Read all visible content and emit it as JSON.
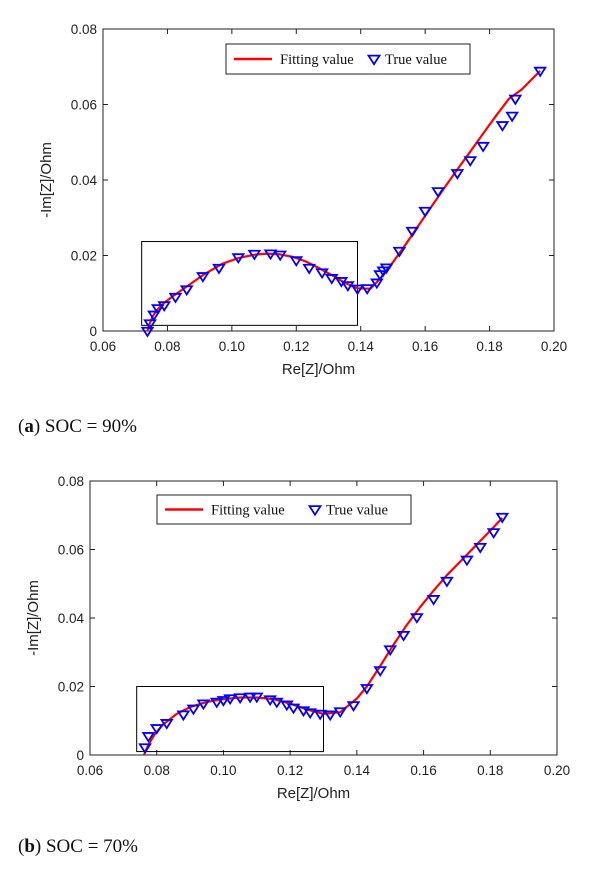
{
  "chart_data": [
    {
      "type": "scatter",
      "panel": "a",
      "caption_letter": "a",
      "caption_text": "SOC = 90%",
      "xlabel": "Re[Z]/Ohm",
      "ylabel": "-Im[Z]/Ohm",
      "xlim": [
        0.06,
        0.2
      ],
      "ylim": [
        0,
        0.08
      ],
      "x_ticks": [
        "0.06",
        "0.08",
        "0.10",
        "0.12",
        "0.14",
        "0.16",
        "0.18",
        "0.20"
      ],
      "y_ticks": [
        "0",
        "0.02",
        "0.04",
        "0.06",
        "0.08"
      ],
      "legend": {
        "position": "top",
        "fit_label": "Fitting value",
        "true_label": "True value"
      },
      "colors": {
        "fit": "#ff0000",
        "true": "#0000ff"
      },
      "highlight_box": {
        "x": [
          0.072,
          0.139
        ],
        "y": [
          0.0015,
          0.0237
        ]
      },
      "series": [
        {
          "name": "Fitting value",
          "x": [
            0.0738,
            0.0745,
            0.0755,
            0.077,
            0.079,
            0.082,
            0.086,
            0.091,
            0.097,
            0.102,
            0.107,
            0.111,
            0.115,
            0.119,
            0.123,
            0.127,
            0.131,
            0.135,
            0.139,
            0.143,
            0.146,
            0.15,
            0.154,
            0.158,
            0.162,
            0.166,
            0.17,
            0.174,
            0.178,
            0.182,
            0.186,
            0.19,
            0.1957
          ],
          "y": [
            0.0,
            0.002,
            0.004,
            0.0058,
            0.0075,
            0.0094,
            0.0118,
            0.0148,
            0.0178,
            0.0193,
            0.0202,
            0.0205,
            0.0203,
            0.0196,
            0.0184,
            0.0167,
            0.0148,
            0.0128,
            0.0113,
            0.0112,
            0.0138,
            0.0182,
            0.023,
            0.028,
            0.033,
            0.038,
            0.0428,
            0.0475,
            0.0523,
            0.057,
            0.0615,
            0.064,
            0.0689
          ]
        },
        {
          "name": "True value",
          "x": [
            0.0738,
            0.0746,
            0.0758,
            0.077,
            0.079,
            0.0825,
            0.086,
            0.091,
            0.096,
            0.102,
            0.107,
            0.112,
            0.115,
            0.12,
            0.124,
            0.128,
            0.131,
            0.134,
            0.136,
            0.139,
            0.142,
            0.145,
            0.146,
            0.147,
            0.148,
            0.152,
            0.156,
            0.16,
            0.164,
            0.17,
            0.174,
            0.178,
            0.184,
            0.187,
            0.188,
            0.1957
          ],
          "y": [
            0.0,
            0.002,
            0.0043,
            0.006,
            0.0068,
            0.009,
            0.011,
            0.0145,
            0.0167,
            0.0195,
            0.0204,
            0.0205,
            0.0202,
            0.0187,
            0.0167,
            0.0155,
            0.014,
            0.0132,
            0.0121,
            0.0112,
            0.0113,
            0.0128,
            0.015,
            0.016,
            0.0168,
            0.0212,
            0.0265,
            0.0318,
            0.037,
            0.0418,
            0.0452,
            0.049,
            0.0545,
            0.057,
            0.0615,
            0.0689
          ]
        }
      ]
    },
    {
      "type": "scatter",
      "panel": "b",
      "caption_letter": "b",
      "caption_text": "SOC = 70%",
      "xlabel": "Re[Z]/Ohm",
      "ylabel": "-Im[Z]/Ohm",
      "xlim": [
        0.06,
        0.2
      ],
      "ylim": [
        0,
        0.08
      ],
      "x_ticks": [
        "0.06",
        "0.08",
        "0.10",
        "0.12",
        "0.14",
        "0.16",
        "0.18",
        "0.20"
      ],
      "y_ticks": [
        "0",
        "0.02",
        "0.04",
        "0.06",
        "0.08"
      ],
      "legend": {
        "position": "top-left",
        "fit_label": "Fitting value",
        "true_label": "True value"
      },
      "colors": {
        "fit": "#ff0000",
        "true": "#0000ff"
      },
      "highlight_box": {
        "x": [
          0.074,
          0.13
        ],
        "y": [
          0.001,
          0.02
        ]
      },
      "series": [
        {
          "name": "Fitting value",
          "x": [
            0.0762,
            0.0775,
            0.0795,
            0.082,
            0.086,
            0.09,
            0.095,
            0.1,
            0.105,
            0.11,
            0.115,
            0.12,
            0.125,
            0.13,
            0.135,
            0.14,
            0.143,
            0.147,
            0.151,
            0.155,
            0.159,
            0.163,
            0.167,
            0.171,
            0.175,
            0.179,
            0.1836
          ],
          "y": [
            0.0,
            0.003,
            0.0062,
            0.009,
            0.012,
            0.014,
            0.0155,
            0.0163,
            0.0168,
            0.0168,
            0.0163,
            0.015,
            0.0133,
            0.012,
            0.0125,
            0.0165,
            0.02,
            0.026,
            0.0322,
            0.038,
            0.0432,
            0.048,
            0.0525,
            0.0565,
            0.0605,
            0.0645,
            0.0692
          ]
        },
        {
          "name": "True value",
          "x": [
            0.0765,
            0.0775,
            0.08,
            0.083,
            0.088,
            0.091,
            0.094,
            0.098,
            0.1,
            0.102,
            0.105,
            0.108,
            0.11,
            0.114,
            0.116,
            0.119,
            0.121,
            0.124,
            0.126,
            0.129,
            0.132,
            0.135,
            0.139,
            0.143,
            0.147,
            0.15,
            0.154,
            0.158,
            0.163,
            0.167,
            0.173,
            0.177,
            0.181,
            0.1836
          ],
          "y": [
            0.0022,
            0.0055,
            0.0078,
            0.0093,
            0.0118,
            0.0135,
            0.015,
            0.0155,
            0.016,
            0.0165,
            0.0168,
            0.017,
            0.017,
            0.0162,
            0.0155,
            0.0147,
            0.0138,
            0.013,
            0.0124,
            0.012,
            0.0118,
            0.0127,
            0.0145,
            0.0195,
            0.0247,
            0.0308,
            0.035,
            0.0402,
            0.0455,
            0.0508,
            0.057,
            0.0607,
            0.065,
            0.0695
          ]
        }
      ]
    }
  ]
}
